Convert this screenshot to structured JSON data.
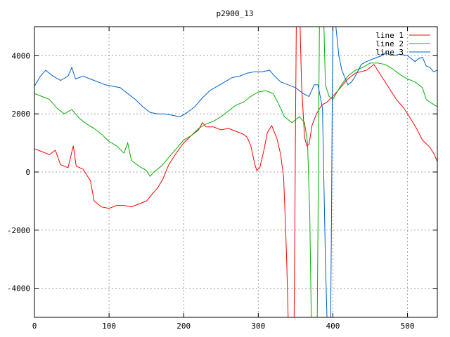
{
  "chart_data": {
    "type": "line",
    "title": "p2900_13",
    "xlabel": "",
    "ylabel": "",
    "xlim": [
      0,
      540
    ],
    "ylim": [
      -5000,
      5000
    ],
    "x_ticks": [
      0,
      100,
      200,
      300,
      400,
      500
    ],
    "y_ticks": [
      -4000,
      -2000,
      0,
      2000,
      4000
    ],
    "grid": true,
    "legend_position": "top-right",
    "series": [
      {
        "name": "line 1",
        "color": "#ff0000",
        "points": [
          [
            0,
            800
          ],
          [
            10,
            700
          ],
          [
            20,
            600
          ],
          [
            28,
            750
          ],
          [
            35,
            250
          ],
          [
            45,
            150
          ],
          [
            52,
            900
          ],
          [
            56,
            200
          ],
          [
            65,
            100
          ],
          [
            75,
            -300
          ],
          [
            80,
            -1000
          ],
          [
            90,
            -1200
          ],
          [
            100,
            -1250
          ],
          [
            110,
            -1150
          ],
          [
            120,
            -1150
          ],
          [
            130,
            -1200
          ],
          [
            140,
            -1100
          ],
          [
            150,
            -1000
          ],
          [
            158,
            -750
          ],
          [
            165,
            -550
          ],
          [
            172,
            -250
          ],
          [
            180,
            250
          ],
          [
            190,
            650
          ],
          [
            200,
            1000
          ],
          [
            210,
            1250
          ],
          [
            220,
            1450
          ],
          [
            225,
            1700
          ],
          [
            230,
            1550
          ],
          [
            240,
            1550
          ],
          [
            250,
            1450
          ],
          [
            260,
            1500
          ],
          [
            270,
            1400
          ],
          [
            280,
            1300
          ],
          [
            285,
            1200
          ],
          [
            290,
            900
          ],
          [
            295,
            300
          ],
          [
            298,
            50
          ],
          [
            302,
            150
          ],
          [
            308,
            800
          ],
          [
            312,
            1350
          ],
          [
            318,
            1600
          ],
          [
            325,
            1150
          ],
          [
            330,
            600
          ],
          [
            334,
            -200
          ],
          [
            336,
            -1500
          ],
          [
            338,
            -3000
          ],
          [
            340,
            -5000
          ],
          [
            348,
            -5000
          ],
          [
            349,
            -2000
          ],
          [
            350,
            2000
          ],
          [
            351,
            5000
          ],
          [
            356,
            5000
          ],
          [
            358,
            3000
          ],
          [
            362,
            1200
          ],
          [
            365,
            900
          ],
          [
            368,
            950
          ],
          [
            372,
            1600
          ],
          [
            378,
            2000
          ],
          [
            385,
            2300
          ],
          [
            392,
            2400
          ],
          [
            400,
            2600
          ],
          [
            410,
            2900
          ],
          [
            420,
            3200
          ],
          [
            430,
            3400
          ],
          [
            445,
            3500
          ],
          [
            455,
            3700
          ],
          [
            465,
            3300
          ],
          [
            475,
            2900
          ],
          [
            485,
            2500
          ],
          [
            495,
            2200
          ],
          [
            505,
            1800
          ],
          [
            512,
            1500
          ],
          [
            520,
            1100
          ],
          [
            530,
            850
          ],
          [
            536,
            600
          ],
          [
            540,
            350
          ]
        ]
      },
      {
        "name": "line 2",
        "color": "#00b000",
        "points": [
          [
            0,
            2700
          ],
          [
            10,
            2600
          ],
          [
            20,
            2500
          ],
          [
            30,
            2200
          ],
          [
            40,
            2000
          ],
          [
            50,
            2150
          ],
          [
            60,
            1850
          ],
          [
            70,
            1650
          ],
          [
            80,
            1500
          ],
          [
            90,
            1300
          ],
          [
            100,
            1050
          ],
          [
            110,
            900
          ],
          [
            120,
            650
          ],
          [
            125,
            1000
          ],
          [
            130,
            400
          ],
          [
            140,
            200
          ],
          [
            150,
            50
          ],
          [
            155,
            -150
          ],
          [
            160,
            0
          ],
          [
            170,
            200
          ],
          [
            180,
            500
          ],
          [
            190,
            800
          ],
          [
            200,
            1100
          ],
          [
            210,
            1250
          ],
          [
            220,
            1500
          ],
          [
            230,
            1650
          ],
          [
            240,
            1750
          ],
          [
            250,
            1900
          ],
          [
            260,
            2100
          ],
          [
            270,
            2300
          ],
          [
            280,
            2400
          ],
          [
            290,
            2600
          ],
          [
            300,
            2750
          ],
          [
            310,
            2800
          ],
          [
            320,
            2700
          ],
          [
            328,
            2300
          ],
          [
            335,
            1900
          ],
          [
            345,
            1700
          ],
          [
            355,
            1900
          ],
          [
            362,
            1700
          ],
          [
            366,
            1000
          ],
          [
            369,
            -1500
          ],
          [
            371,
            -5000
          ],
          [
            379,
            -5000
          ],
          [
            380,
            -2000
          ],
          [
            381,
            2000
          ],
          [
            382,
            5000
          ],
          [
            388,
            5000
          ],
          [
            390,
            3000
          ],
          [
            395,
            2600
          ],
          [
            400,
            2500
          ],
          [
            410,
            2950
          ],
          [
            420,
            3300
          ],
          [
            430,
            3500
          ],
          [
            440,
            3600
          ],
          [
            450,
            3750
          ],
          [
            460,
            3750
          ],
          [
            470,
            3700
          ],
          [
            480,
            3550
          ],
          [
            490,
            3350
          ],
          [
            500,
            3200
          ],
          [
            510,
            3100
          ],
          [
            520,
            2900
          ],
          [
            525,
            2500
          ],
          [
            530,
            2400
          ],
          [
            540,
            2250
          ]
        ]
      },
      {
        "name": "line 3",
        "color": "#0060d0",
        "points": [
          [
            0,
            2950
          ],
          [
            8,
            3300
          ],
          [
            15,
            3500
          ],
          [
            25,
            3300
          ],
          [
            35,
            3150
          ],
          [
            45,
            3300
          ],
          [
            50,
            3600
          ],
          [
            55,
            3200
          ],
          [
            65,
            3300
          ],
          [
            80,
            3150
          ],
          [
            95,
            3000
          ],
          [
            105,
            2950
          ],
          [
            115,
            2900
          ],
          [
            125,
            2700
          ],
          [
            135,
            2500
          ],
          [
            145,
            2250
          ],
          [
            155,
            2050
          ],
          [
            165,
            2000
          ],
          [
            175,
            2000
          ],
          [
            185,
            1950
          ],
          [
            195,
            1900
          ],
          [
            205,
            2050
          ],
          [
            215,
            2250
          ],
          [
            225,
            2550
          ],
          [
            235,
            2800
          ],
          [
            245,
            2950
          ],
          [
            255,
            3100
          ],
          [
            265,
            3250
          ],
          [
            275,
            3300
          ],
          [
            285,
            3400
          ],
          [
            295,
            3450
          ],
          [
            305,
            3450
          ],
          [
            315,
            3500
          ],
          [
            322,
            3300
          ],
          [
            330,
            3100
          ],
          [
            340,
            3000
          ],
          [
            350,
            2900
          ],
          [
            360,
            2700
          ],
          [
            368,
            2600
          ],
          [
            375,
            3000
          ],
          [
            380,
            3000
          ],
          [
            386,
            2200
          ],
          [
            390,
            -3000
          ],
          [
            392,
            -5000
          ],
          [
            397,
            -5000
          ],
          [
            398,
            -2000
          ],
          [
            399,
            2000
          ],
          [
            400,
            5000
          ],
          [
            404,
            5000
          ],
          [
            408,
            4000
          ],
          [
            412,
            3500
          ],
          [
            420,
            3000
          ],
          [
            425,
            3100
          ],
          [
            430,
            3300
          ],
          [
            438,
            3700
          ],
          [
            445,
            3800
          ],
          [
            455,
            3900
          ],
          [
            465,
            4000
          ],
          [
            470,
            4100
          ],
          [
            480,
            4000
          ],
          [
            490,
            4050
          ],
          [
            500,
            4000
          ],
          [
            510,
            3800
          ],
          [
            515,
            3900
          ],
          [
            520,
            3950
          ],
          [
            525,
            3650
          ],
          [
            530,
            3600
          ],
          [
            535,
            3450
          ],
          [
            540,
            3500
          ]
        ]
      }
    ]
  }
}
